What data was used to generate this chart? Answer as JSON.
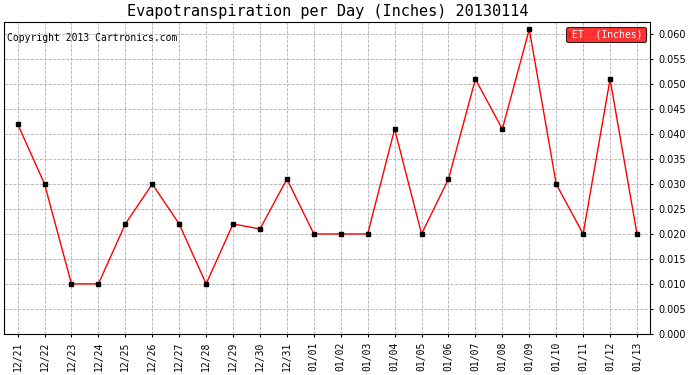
{
  "title": "Evapotranspiration per Day (Inches) 20130114",
  "copyright_text": "Copyright 2013 Cartronics.com",
  "legend_label": "ET  (Inches)",
  "dates": [
    "12/21",
    "12/22",
    "12/23",
    "12/24",
    "12/25",
    "12/26",
    "12/27",
    "12/28",
    "12/29",
    "12/30",
    "12/31",
    "01/01",
    "01/02",
    "01/03",
    "01/04",
    "01/05",
    "01/06",
    "01/07",
    "01/08",
    "01/09",
    "01/10",
    "01/11",
    "01/12",
    "01/13"
  ],
  "values": [
    0.042,
    0.03,
    0.01,
    0.01,
    0.022,
    0.03,
    0.022,
    0.01,
    0.022,
    0.021,
    0.031,
    0.02,
    0.02,
    0.02,
    0.041,
    0.02,
    0.031,
    0.051,
    0.041,
    0.061,
    0.03,
    0.02,
    0.051,
    0.02
  ],
  "line_color": "red",
  "marker_color": "black",
  "background_color": "#ffffff",
  "grid_color": "#b0b0b0",
  "ylim": [
    0.0,
    0.0625
  ],
  "yticks": [
    0.0,
    0.005,
    0.01,
    0.015,
    0.02,
    0.025,
    0.03,
    0.035,
    0.04,
    0.045,
    0.05,
    0.055,
    0.06
  ],
  "title_fontsize": 11,
  "copyright_fontsize": 7,
  "tick_fontsize": 7,
  "legend_bg": "red",
  "legend_text_color": "white",
  "legend_fontsize": 7
}
